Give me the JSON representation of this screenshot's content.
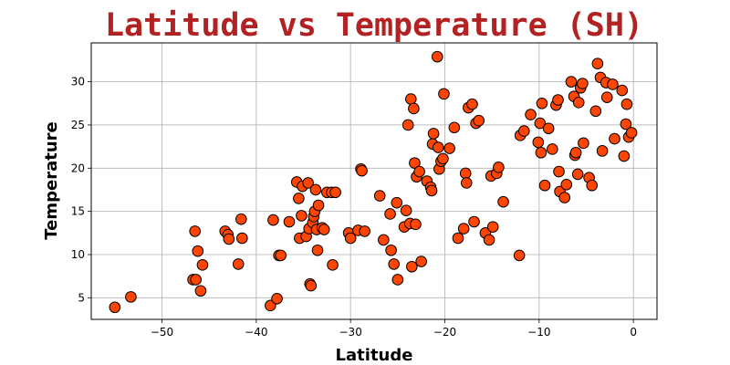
{
  "chart_data": {
    "type": "scatter",
    "title": "Latitude vs Temperature (SH)",
    "xlabel": "Latitude",
    "ylabel": "Temperature",
    "xlim": [
      -57.5,
      2.5
    ],
    "ylim": [
      2.5,
      34.5
    ],
    "xticks": [
      -50,
      -40,
      -30,
      -20,
      -10,
      0
    ],
    "yticks": [
      5,
      10,
      15,
      20,
      25,
      30
    ],
    "grid": true,
    "marker_color": "#ff4500",
    "marker_edge_color": "#000000",
    "title_color": "#b22222",
    "points": [
      [
        -55,
        3.9
      ],
      [
        -53.3,
        5.1
      ],
      [
        -46.7,
        7.1
      ],
      [
        -46.5,
        12.7
      ],
      [
        -46.4,
        7.1
      ],
      [
        -46.2,
        10.4
      ],
      [
        -45.9,
        5.8
      ],
      [
        -45.7,
        8.8
      ],
      [
        -43.3,
        12.7
      ],
      [
        -43,
        12.3
      ],
      [
        -42.9,
        11.8
      ],
      [
        -41.9,
        8.9
      ],
      [
        -41.6,
        14.1
      ],
      [
        -41.5,
        11.9
      ],
      [
        -38.5,
        4.1
      ],
      [
        -38.2,
        14.0
      ],
      [
        -37.8,
        4.9
      ],
      [
        -37.6,
        9.9
      ],
      [
        -37.4,
        9.9
      ],
      [
        -36.5,
        13.8
      ],
      [
        -35.7,
        18.4
      ],
      [
        -35.5,
        16.5
      ],
      [
        -35.4,
        11.9
      ],
      [
        -35.2,
        14.5
      ],
      [
        -35.1,
        17.9
      ],
      [
        -34.7,
        12.1
      ],
      [
        -34.5,
        18.3
      ],
      [
        -34.4,
        13.0
      ],
      [
        -34.3,
        6.6
      ],
      [
        -34.2,
        6.4
      ],
      [
        -34,
        13.7
      ],
      [
        -33.9,
        14.4
      ],
      [
        -33.8,
        15.0
      ],
      [
        -33.7,
        17.5
      ],
      [
        -33.6,
        12.9
      ],
      [
        -33.5,
        10.5
      ],
      [
        -33.4,
        15.7
      ],
      [
        -33,
        13.1
      ],
      [
        -32.8,
        12.9
      ],
      [
        -32.5,
        17.2
      ],
      [
        -32,
        17.2
      ],
      [
        -31.9,
        8.8
      ],
      [
        -31.6,
        17.2
      ],
      [
        -30.2,
        12.5
      ],
      [
        -30,
        11.9
      ],
      [
        -29.2,
        12.8
      ],
      [
        -28.9,
        19.9
      ],
      [
        -28.8,
        19.7
      ],
      [
        -28.5,
        12.7
      ],
      [
        -26.9,
        16.8
      ],
      [
        -26.5,
        11.7
      ],
      [
        -25.8,
        14.7
      ],
      [
        -25.7,
        10.5
      ],
      [
        -25.4,
        8.9
      ],
      [
        -25.1,
        16.0
      ],
      [
        -25,
        7.1
      ],
      [
        -24.3,
        13.2
      ],
      [
        -24.1,
        15.1
      ],
      [
        -23.9,
        25.0
      ],
      [
        -23.7,
        13.6
      ],
      [
        -23.6,
        28.0
      ],
      [
        -23.5,
        8.6
      ],
      [
        -23.3,
        26.9
      ],
      [
        -23.2,
        20.6
      ],
      [
        -23.1,
        13.5
      ],
      [
        -23,
        19.0
      ],
      [
        -22.7,
        19.6
      ],
      [
        -22.5,
        9.2
      ],
      [
        -21.9,
        18.5
      ],
      [
        -21.5,
        17.8
      ],
      [
        -21.4,
        17.4
      ],
      [
        -21.3,
        22.8
      ],
      [
        -21.2,
        24.0
      ],
      [
        -20.8,
        32.9
      ],
      [
        -20.7,
        22.4
      ],
      [
        -20.6,
        19.9
      ],
      [
        -20.4,
        20.8
      ],
      [
        -20.2,
        21.1
      ],
      [
        -20.1,
        28.6
      ],
      [
        -19.5,
        22.3
      ],
      [
        -19,
        24.7
      ],
      [
        -18.6,
        11.9
      ],
      [
        -18,
        13.0
      ],
      [
        -17.8,
        19.4
      ],
      [
        -17.7,
        18.3
      ],
      [
        -17.5,
        27.0
      ],
      [
        -17.1,
        27.4
      ],
      [
        -16.9,
        13.8
      ],
      [
        -16.7,
        25.2
      ],
      [
        -16.4,
        25.5
      ],
      [
        -15.7,
        12.5
      ],
      [
        -15.3,
        11.7
      ],
      [
        -15.1,
        19.1
      ],
      [
        -14.9,
        13.2
      ],
      [
        -14.5,
        19.4
      ],
      [
        -14.3,
        20.1
      ],
      [
        -13.8,
        16.1
      ],
      [
        -12.1,
        9.9
      ],
      [
        -12,
        23.8
      ],
      [
        -11.6,
        24.3
      ],
      [
        -10.9,
        26.2
      ],
      [
        -10.1,
        23.0
      ],
      [
        -9.9,
        25.2
      ],
      [
        -9.8,
        21.8
      ],
      [
        -9.7,
        27.5
      ],
      [
        -9.4,
        18.0
      ],
      [
        -9,
        24.6
      ],
      [
        -8.6,
        22.2
      ],
      [
        -8.2,
        27.3
      ],
      [
        -8,
        27.9
      ],
      [
        -7.9,
        19.6
      ],
      [
        -7.8,
        17.3
      ],
      [
        -7.3,
        16.6
      ],
      [
        -7.1,
        18.1
      ],
      [
        -6.6,
        30.0
      ],
      [
        -6.3,
        28.3
      ],
      [
        -6.2,
        21.5
      ],
      [
        -6.1,
        21.8
      ],
      [
        -5.9,
        19.3
      ],
      [
        -5.8,
        27.6
      ],
      [
        -5.6,
        29.3
      ],
      [
        -5.4,
        29.8
      ],
      [
        -5.3,
        22.9
      ],
      [
        -4.7,
        18.9
      ],
      [
        -4.4,
        18.0
      ],
      [
        -4,
        26.6
      ],
      [
        -3.8,
        32.1
      ],
      [
        -3.5,
        30.5
      ],
      [
        -3.3,
        22.0
      ],
      [
        -2.9,
        29.9
      ],
      [
        -2.8,
        28.2
      ],
      [
        -2.2,
        29.7
      ],
      [
        -2,
        23.4
      ],
      [
        -1.2,
        29.0
      ],
      [
        -1,
        21.4
      ],
      [
        -0.8,
        25.1
      ],
      [
        -0.7,
        27.4
      ],
      [
        -0.5,
        23.6
      ],
      [
        -0.2,
        24.1
      ]
    ]
  }
}
